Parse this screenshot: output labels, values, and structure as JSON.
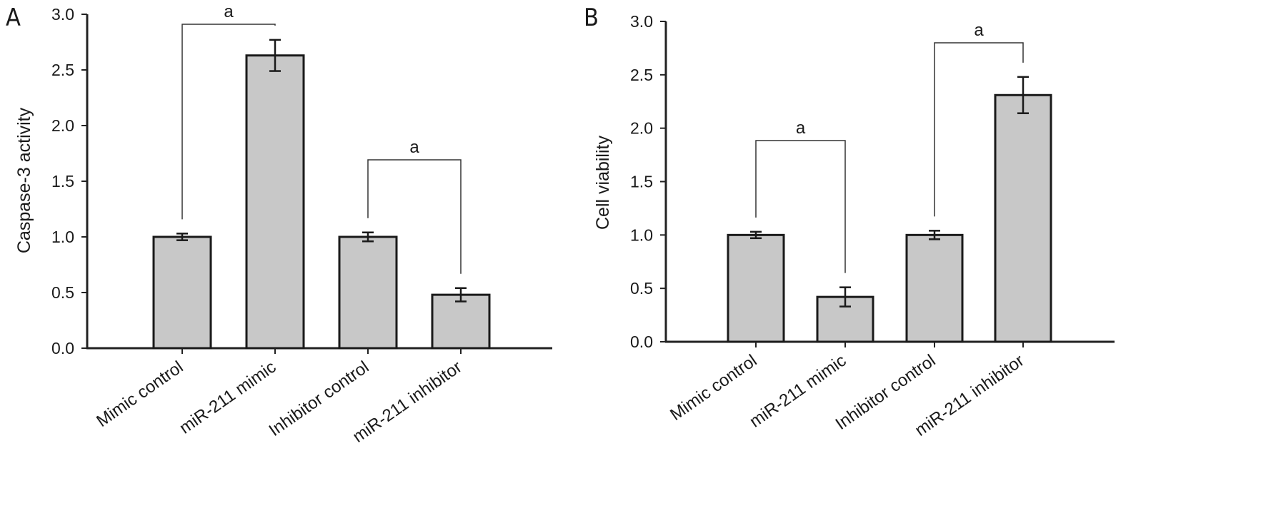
{
  "chart_data": [
    {
      "panel": "A",
      "type": "bar",
      "title": "",
      "xlabel": "",
      "ylabel": "Caspase-3 activity",
      "ylim": [
        0,
        3.0
      ],
      "yticks": [
        "0.0",
        "0.5",
        "1.0",
        "1.5",
        "2.0",
        "2.5",
        "3.0"
      ],
      "categories": [
        "Mimic control",
        "miR-211 mimic",
        "Inhibitor control",
        "miR-211 inhibitor"
      ],
      "values": [
        1.0,
        2.63,
        1.0,
        0.48
      ],
      "errors": [
        0.03,
        0.14,
        0.04,
        0.06
      ],
      "bar_color": "#c8c8c8",
      "grid": false,
      "significance": [
        {
          "from": 0,
          "to": 1,
          "label": "a"
        },
        {
          "from": 2,
          "to": 3,
          "label": "a"
        }
      ]
    },
    {
      "panel": "B",
      "type": "bar",
      "title": "",
      "xlabel": "",
      "ylabel": "Cell viability",
      "ylim": [
        0,
        3.0
      ],
      "yticks": [
        "0.0",
        "0.5",
        "1.0",
        "1.5",
        "2.0",
        "2.5",
        "3.0"
      ],
      "categories": [
        "Mimic control",
        "miR-211 mimic",
        "Inhibitor control",
        "miR-211 inhibitor"
      ],
      "values": [
        1.0,
        0.42,
        1.0,
        2.31
      ],
      "errors": [
        0.03,
        0.09,
        0.04,
        0.17
      ],
      "bar_color": "#c8c8c8",
      "grid": false,
      "significance": [
        {
          "from": 0,
          "to": 1,
          "label": "a"
        },
        {
          "from": 2,
          "to": 3,
          "label": "a"
        }
      ]
    }
  ]
}
